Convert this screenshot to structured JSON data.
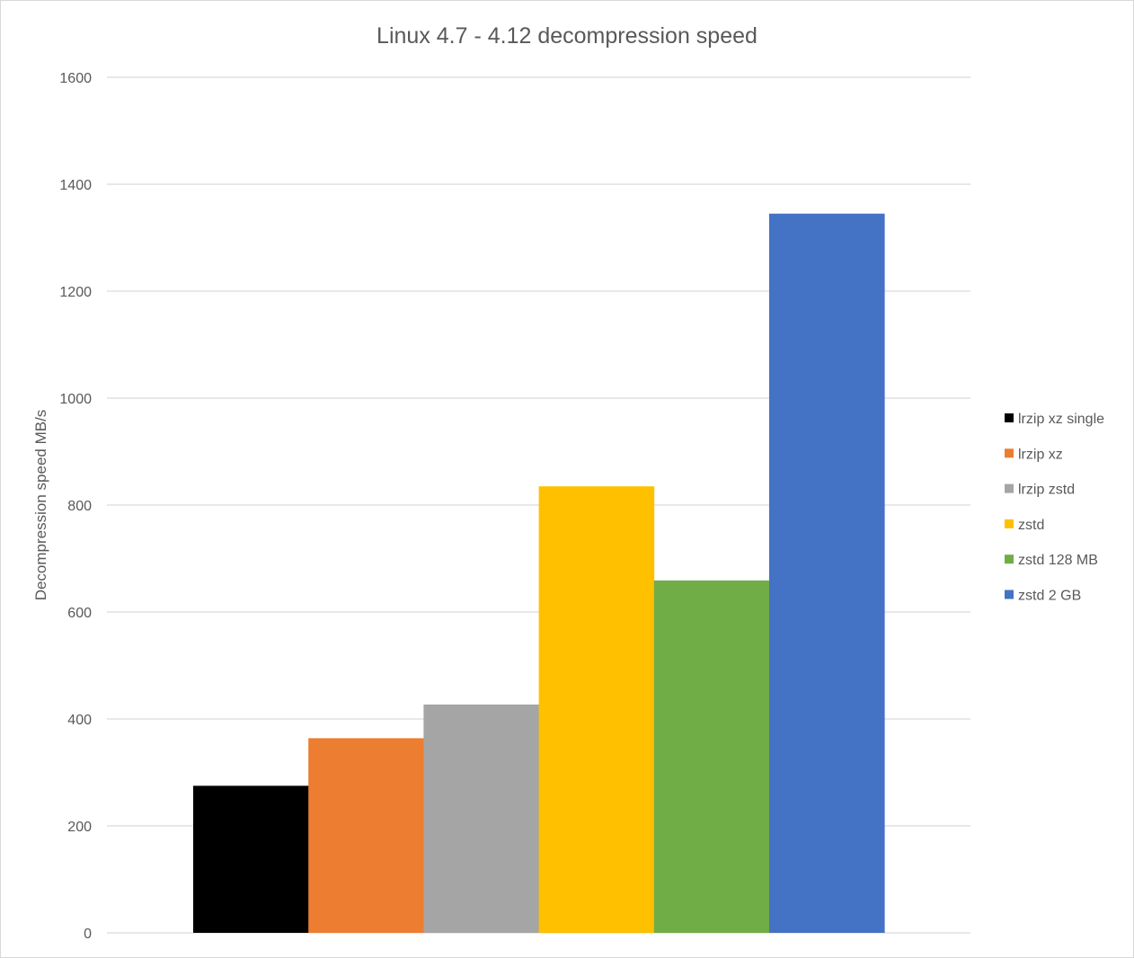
{
  "chart_data": {
    "type": "bar",
    "title": "Linux 4.7 - 4.12 decompression  speed",
    "ylabel": "Decompression speed MB/s",
    "xlabel": "",
    "ylim": [
      0,
      1600
    ],
    "yticks": [
      0,
      200,
      400,
      600,
      800,
      1000,
      1200,
      1400,
      1600
    ],
    "grid": true,
    "legend_position": "right",
    "series": [
      {
        "name": "lrzip xz single",
        "value": 275,
        "color": "#000000"
      },
      {
        "name": "lrzip xz",
        "value": 364,
        "color": "#ed7d31"
      },
      {
        "name": "lrzip zstd",
        "value": 427,
        "color": "#a5a5a5"
      },
      {
        "name": "zstd",
        "value": 835,
        "color": "#ffc000"
      },
      {
        "name": "zstd 128 MB",
        "value": 659,
        "color": "#70ad47"
      },
      {
        "name": "zstd 2 GB",
        "value": 1345,
        "color": "#4472c4"
      }
    ]
  }
}
